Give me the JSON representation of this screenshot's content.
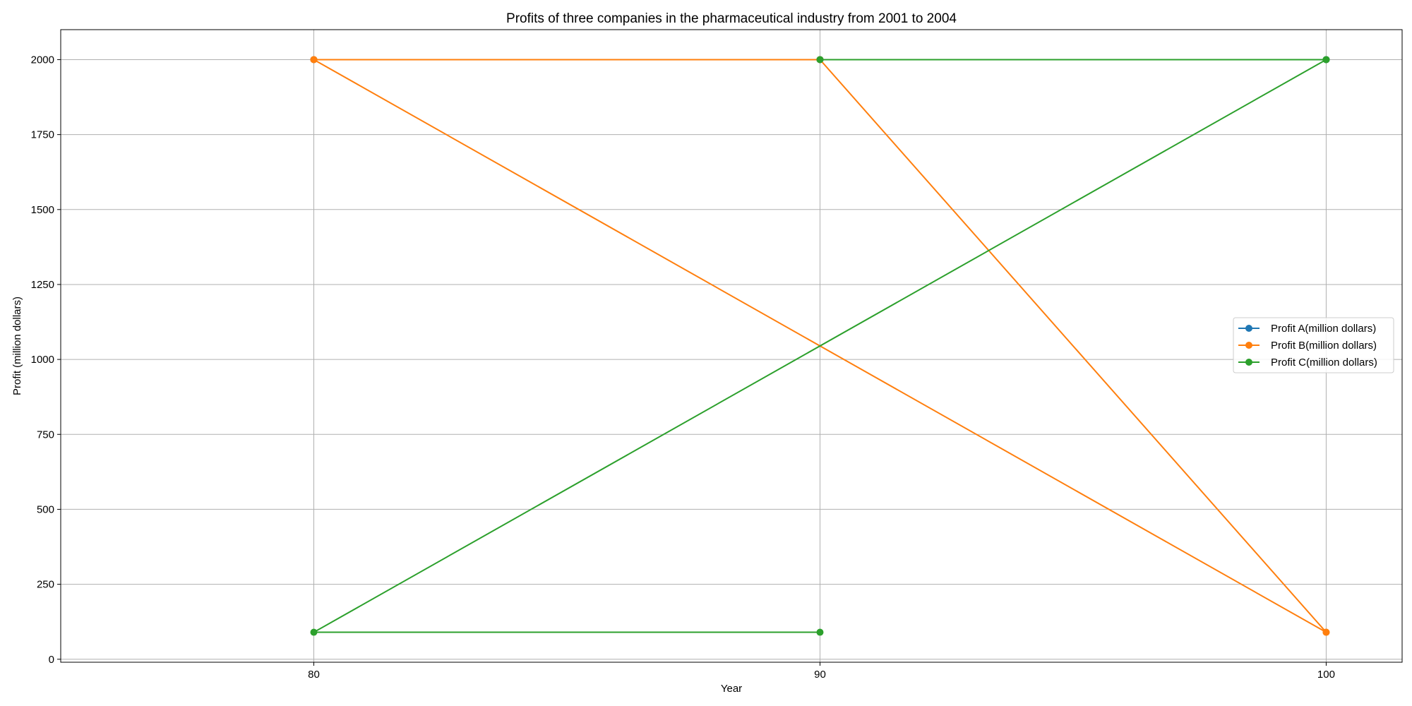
{
  "chart_data": {
    "type": "line",
    "title": "Profits of three companies in the pharmaceutical industry from 2001 to 2004",
    "xlabel": "Year",
    "ylabel": "Profit (million dollars)",
    "xlim": [
      75,
      101.5
    ],
    "ylim": [
      -10,
      2100
    ],
    "xticks": [
      80,
      90,
      100
    ],
    "yticks": [
      0,
      250,
      500,
      750,
      1000,
      1250,
      1500,
      1750,
      2000
    ],
    "grid": true,
    "legend_position": "center-right",
    "series": [
      {
        "name": "Profit A(million dollars)",
        "color": "#1f77b4",
        "points": [
          [
            80,
            2000
          ],
          [
            90,
            2000
          ],
          [
            90,
            2000
          ],
          [
            100,
            2000
          ]
        ]
      },
      {
        "name": "Profit B(million dollars)",
        "color": "#ff7f0e",
        "points": [
          [
            80,
            2000
          ],
          [
            90,
            2000
          ],
          [
            100,
            90
          ],
          [
            80,
            2000
          ],
          [
            100,
            90
          ]
        ]
      },
      {
        "name": "Profit C(million dollars)",
        "color": "#2ca02c",
        "points": [
          [
            90,
            90
          ],
          [
            80,
            90
          ],
          [
            100,
            2000
          ],
          [
            90,
            2000
          ],
          [
            100,
            2000
          ]
        ]
      }
    ]
  }
}
